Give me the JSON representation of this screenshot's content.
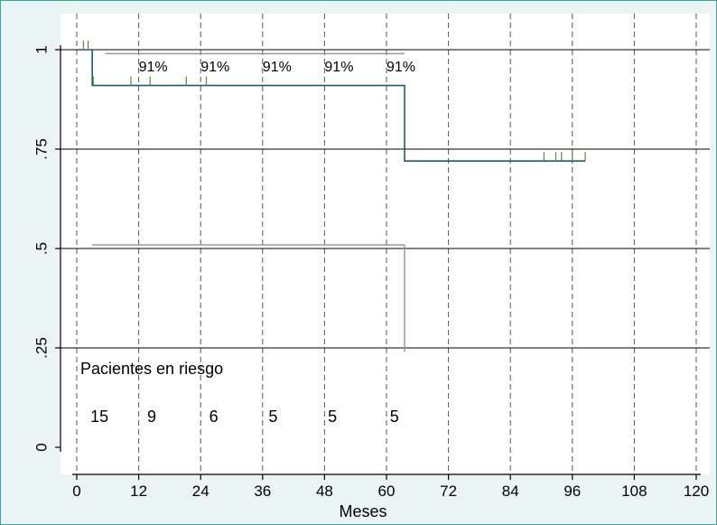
{
  "chart_data": {
    "type": "line",
    "xlabel": "Meses",
    "ylabel": "",
    "xlim": [
      0,
      120
    ],
    "ylim": [
      0,
      1
    ],
    "x_ticks": [
      0,
      12,
      24,
      36,
      48,
      60,
      72,
      84,
      96,
      108,
      120
    ],
    "y_ticks": [
      0,
      0.25,
      0.5,
      0.75,
      1
    ],
    "y_tick_labels": [
      "0",
      ".25",
      ".5",
      ".75",
      "1"
    ],
    "grid": {
      "horizontal": true,
      "vertical_dashed": true
    },
    "series": [
      {
        "x": [
          0,
          3,
          3,
          63.5,
          63.5,
          98.5
        ],
        "y": [
          1,
          1,
          0.91,
          0.91,
          0.72,
          0.72
        ],
        "color": "#1a5c6b",
        "censor_marks": [
          {
            "x": 1.3,
            "y": 1
          },
          {
            "x": 2.2,
            "y": 1
          },
          {
            "x": 3.2,
            "y": 0.91
          },
          {
            "x": 10.5,
            "y": 0.91
          },
          {
            "x": 14.2,
            "y": 0.91
          },
          {
            "x": 21.2,
            "y": 0.91
          },
          {
            "x": 25.1,
            "y": 0.91
          },
          {
            "x": 90.5,
            "y": 0.72
          },
          {
            "x": 92.8,
            "y": 0.72
          },
          {
            "x": 93.9,
            "y": 0.72
          },
          {
            "x": 96.0,
            "y": 0.72
          },
          {
            "x": 98.5,
            "y": 0.72
          }
        ],
        "censor_color": "#5a8a3a"
      }
    ],
    "reference_lines": [
      {
        "x": [
          5.5,
          63.5
        ],
        "y": [
          0.99,
          0.99
        ],
        "color": "#999999"
      },
      {
        "x": [
          3,
          63.5
        ],
        "y": [
          0.509,
          0.509
        ],
        "color": "#999999"
      },
      {
        "x": [
          63.5,
          63.5
        ],
        "y": [
          0.509,
          0.24
        ],
        "color": "#999999"
      }
    ],
    "annotations": [
      {
        "text": "91%",
        "x": 12
      },
      {
        "text": "91%",
        "x": 24
      },
      {
        "text": "91%",
        "x": 36
      },
      {
        "text": "91%",
        "x": 48
      },
      {
        "text": "91%",
        "x": 60
      }
    ],
    "risk_table": {
      "title": "Pacientes en riesgo",
      "values": [
        {
          "x": 3,
          "n": "15"
        },
        {
          "x": 14,
          "n": "9"
        },
        {
          "x": 26,
          "n": "6"
        },
        {
          "x": 37.5,
          "n": "5"
        },
        {
          "x": 49,
          "n": "5"
        },
        {
          "x": 61,
          "n": "5"
        }
      ]
    }
  }
}
